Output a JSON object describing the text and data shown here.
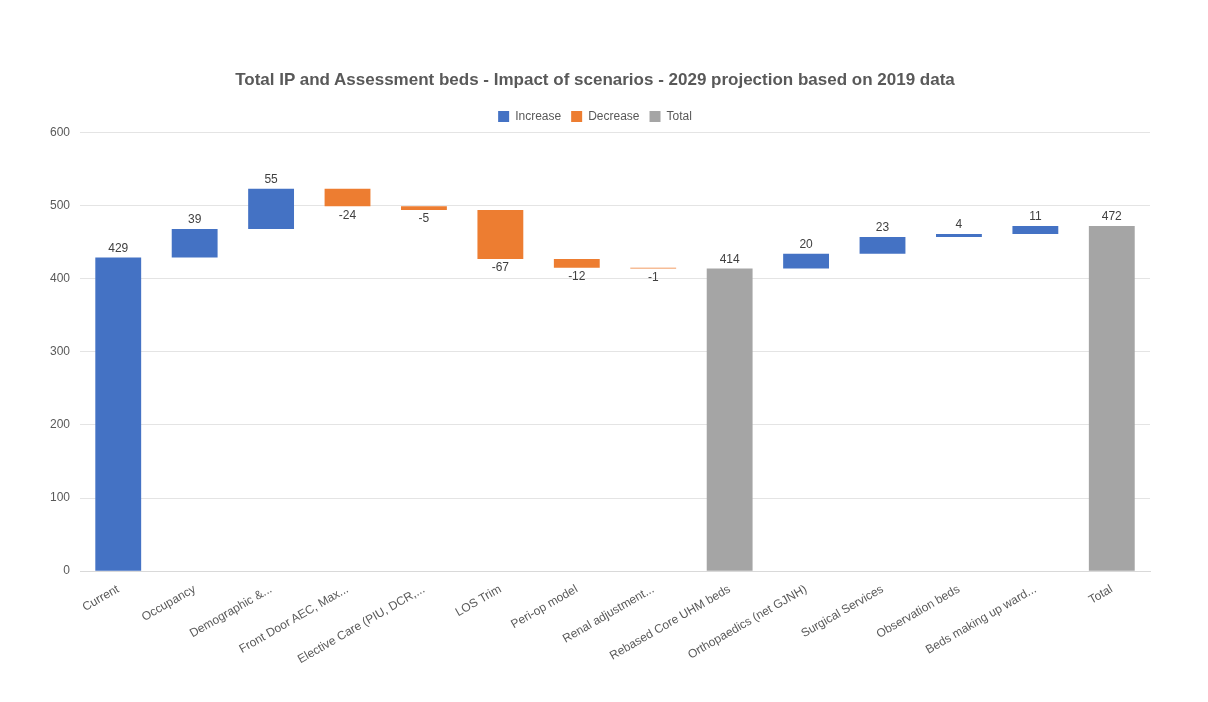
{
  "chart_data": {
    "type": "bar",
    "title": "Total IP and Assessment beds - Impact of scenarios - 2029 projection based on 2019 data",
    "categories": [
      "Current",
      "Occupancy",
      "Demographic &...",
      "Front Door AEC, Max...",
      "Elective Care (PIU, DCR,...",
      "LOS Trim",
      "Peri-op model",
      "Renal adjustment...",
      "Rebased Core UHM beds",
      "Orthopaedics (net GJNH)",
      "Surgical Services",
      "Observation beds",
      "Beds making up ward...",
      "Total"
    ],
    "series": [
      {
        "name": "Increase",
        "color": "#4472c4",
        "values": [
          429,
          39,
          55,
          null,
          null,
          null,
          null,
          null,
          null,
          20,
          23,
          4,
          11,
          null
        ],
        "base": [
          0,
          429,
          468,
          null,
          null,
          null,
          null,
          null,
          null,
          414,
          434,
          457,
          461,
          null
        ]
      },
      {
        "name": "Decrease",
        "color": "#ed7d31",
        "values": [
          null,
          null,
          null,
          -24,
          -5,
          -67,
          -12,
          -1,
          null,
          null,
          null,
          null,
          null,
          null
        ],
        "base": [
          null,
          null,
          null,
          523,
          499,
          494,
          427,
          415,
          null,
          null,
          null,
          null,
          null,
          null
        ]
      },
      {
        "name": "Total",
        "color": "#a5a5a5",
        "values": [
          null,
          null,
          null,
          null,
          null,
          null,
          null,
          null,
          414,
          null,
          null,
          null,
          null,
          472
        ],
        "base": [
          null,
          null,
          null,
          null,
          null,
          null,
          null,
          null,
          0,
          null,
          null,
          null,
          null,
          0
        ]
      }
    ],
    "ylim": [
      0,
      600
    ],
    "yticks": [
      0,
      100,
      200,
      300,
      400,
      500,
      600
    ],
    "grid": "y",
    "legend": "top",
    "data_labels": true
  }
}
